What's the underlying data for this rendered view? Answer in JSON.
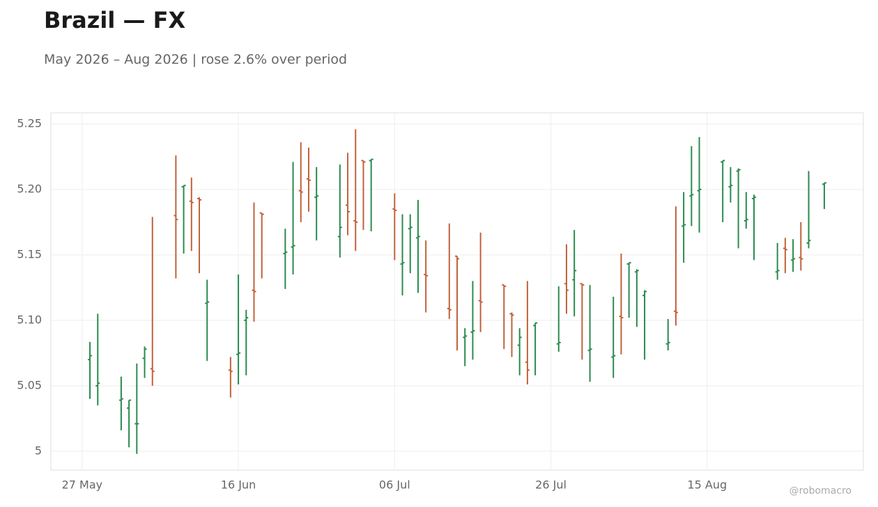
{
  "chart_data": {
    "type": "ohlc",
    "title": "Brazil — FX",
    "subtitle": "May 2026 – Aug 2026 | rose 2.6% over period",
    "watermark": "@robomacro",
    "up_color": "#2a8a4f",
    "down_color": "#c0623a",
    "grid": true,
    "xlim": [
      "2026-05-23",
      "2026-09-04"
    ],
    "xticks": [
      {
        "value": "2026-05-27",
        "label": "27 May"
      },
      {
        "value": "2026-06-16",
        "label": "16 Jun"
      },
      {
        "value": "2026-07-06",
        "label": "06 Jul"
      },
      {
        "value": "2026-07-26",
        "label": "26 Jul"
      },
      {
        "value": "2026-08-15",
        "label": "15 Aug"
      }
    ],
    "ylim": [
      4.9856,
      5.2585
    ],
    "yticks": [
      5,
      5.05,
      {
        "value": 5.1,
        "label": "5.10"
      },
      5.15,
      {
        "value": 5.2,
        "label": "5.20"
      },
      5.25
    ],
    "x": [
      "2026-05-28",
      "2026-05-29",
      "2026-06-01",
      "2026-06-02",
      "2026-06-03",
      "2026-06-04",
      "2026-06-05",
      "2026-06-08",
      "2026-06-09",
      "2026-06-10",
      "2026-06-11",
      "2026-06-12",
      "2026-06-15",
      "2026-06-16",
      "2026-06-17",
      "2026-06-18",
      "2026-06-19",
      "2026-06-22",
      "2026-06-23",
      "2026-06-24",
      "2026-06-25",
      "2026-06-26",
      "2026-06-29",
      "2026-06-30",
      "2026-07-01",
      "2026-07-02",
      "2026-07-03",
      "2026-07-06",
      "2026-07-07",
      "2026-07-08",
      "2026-07-09",
      "2026-07-10",
      "2026-07-13",
      "2026-07-14",
      "2026-07-15",
      "2026-07-16",
      "2026-07-17",
      "2026-07-20",
      "2026-07-21",
      "2026-07-22",
      "2026-07-23",
      "2026-07-24",
      "2026-07-27",
      "2026-07-28",
      "2026-07-29",
      "2026-07-30",
      "2026-07-31",
      "2026-08-03",
      "2026-08-04",
      "2026-08-05",
      "2026-08-06",
      "2026-08-07",
      "2026-08-10",
      "2026-08-11",
      "2026-08-12",
      "2026-08-13",
      "2026-08-14",
      "2026-08-17",
      "2026-08-18",
      "2026-08-19",
      "2026-08-20",
      "2026-08-21",
      "2026-08-24",
      "2026-08-25",
      "2026-08-26",
      "2026-08-27",
      "2026-08-28",
      "2026-08-30"
    ],
    "open": [
      5.07,
      5.05,
      5.039,
      5.033,
      5.021,
      5.071,
      5.063,
      5.18,
      5.202,
      5.191,
      5.193,
      5.113,
      5.062,
      5.074,
      5.1,
      5.123,
      5.182,
      5.151,
      5.156,
      5.199,
      5.208,
      5.194,
      5.164,
      5.188,
      5.176,
      5.222,
      5.222,
      5.185,
      5.143,
      5.17,
      5.163,
      5.135,
      5.109,
      5.149,
      5.087,
      5.091,
      5.115,
      5.127,
      5.105,
      5.081,
      5.068,
      5.096,
      5.082,
      5.128,
      5.131,
      5.128,
      5.077,
      5.072,
      5.103,
      5.143,
      5.137,
      5.119,
      5.082,
      5.107,
      5.172,
      5.195,
      5.199,
      5.221,
      5.202,
      5.214,
      5.176,
      5.193,
      5.137,
      5.155,
      5.146,
      5.148,
      5.159,
      5.204
    ],
    "high": [
      5.0835,
      5.105,
      5.057,
      5.039,
      5.067,
      5.08,
      5.179,
      5.226,
      5.203,
      5.209,
      5.194,
      5.131,
      5.072,
      5.135,
      5.108,
      5.19,
      5.182,
      5.17,
      5.221,
      5.236,
      5.232,
      5.217,
      5.219,
      5.228,
      5.246,
      5.222,
      5.223,
      5.197,
      5.181,
      5.181,
      5.192,
      5.161,
      5.174,
      5.149,
      5.094,
      5.13,
      5.167,
      5.127,
      5.106,
      5.094,
      5.13,
      5.098,
      5.126,
      5.158,
      5.169,
      5.128,
      5.127,
      5.118,
      5.151,
      5.144,
      5.139,
      5.123,
      5.101,
      5.187,
      5.198,
      5.233,
      5.24,
      5.222,
      5.217,
      5.216,
      5.198,
      5.196,
      5.159,
      5.163,
      5.162,
      5.175,
      5.214,
      5.205
    ],
    "low": [
      5.04,
      5.035,
      5.016,
      5.003,
      4.998,
      5.056,
      5.05,
      5.132,
      5.151,
      5.153,
      5.136,
      5.069,
      5.041,
      5.051,
      5.058,
      5.099,
      5.132,
      5.124,
      5.135,
      5.175,
      5.183,
      5.161,
      5.148,
      5.165,
      5.153,
      5.169,
      5.168,
      5.146,
      5.119,
      5.136,
      5.121,
      5.106,
      5.101,
      5.077,
      5.065,
      5.07,
      5.091,
      5.078,
      5.072,
      5.058,
      5.051,
      5.058,
      5.076,
      5.105,
      5.103,
      5.07,
      5.053,
      5.056,
      5.074,
      5.102,
      5.095,
      5.07,
      5.077,
      5.096,
      5.144,
      5.172,
      5.167,
      5.175,
      5.19,
      5.155,
      5.17,
      5.146,
      5.131,
      5.136,
      5.137,
      5.138,
      5.155,
      5.185
    ],
    "close": [
      5.073,
      5.052,
      5.04,
      5.039,
      5.021,
      5.078,
      5.061,
      5.177,
      5.203,
      5.19,
      5.192,
      5.114,
      5.061,
      5.075,
      5.102,
      5.122,
      5.181,
      5.152,
      5.157,
      5.198,
      5.207,
      5.195,
      5.171,
      5.183,
      5.175,
      5.221,
      5.223,
      5.184,
      5.144,
      5.171,
      5.164,
      5.134,
      5.108,
      5.147,
      5.088,
      5.092,
      5.114,
      5.126,
      5.104,
      5.087,
      5.062,
      5.098,
      5.083,
      5.123,
      5.138,
      5.127,
      5.078,
      5.073,
      5.102,
      5.144,
      5.138,
      5.122,
      5.083,
      5.106,
      5.173,
      5.196,
      5.2,
      5.222,
      5.203,
      5.215,
      5.177,
      5.194,
      5.138,
      5.154,
      5.147,
      5.147,
      5.161,
      5.205
    ]
  }
}
